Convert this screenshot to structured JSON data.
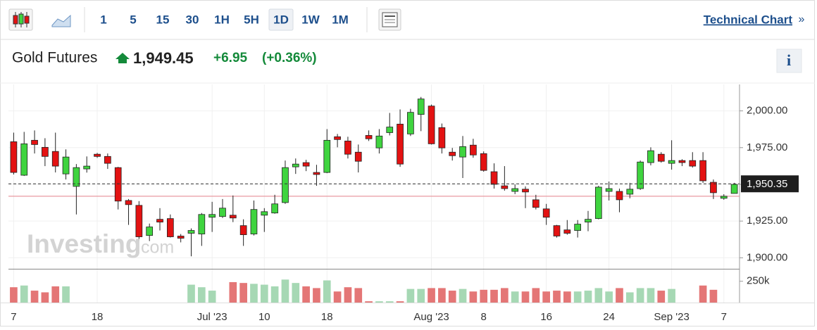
{
  "toolbar": {
    "intervals": [
      "1",
      "5",
      "15",
      "30",
      "1H",
      "5H",
      "1D",
      "1W",
      "1M"
    ],
    "active": "1D",
    "link": "Technical Chart",
    "link_arrow": "»"
  },
  "header": {
    "name": "Gold Futures",
    "price": "1,949.45",
    "change": "+6.95",
    "change_pct": "(+0.36%)",
    "info": "i"
  },
  "watermark": {
    "brand": "Investing",
    "suffix": ".com"
  },
  "chart_data": {
    "type": "candlestick",
    "categories": [
      "7",
      null,
      null,
      null,
      null,
      null,
      null,
      null,
      "18",
      null,
      null,
      null,
      null,
      null,
      null,
      null,
      null,
      null,
      null,
      "Jul '23",
      null,
      null,
      null,
      null,
      "10",
      null,
      null,
      null,
      null,
      null,
      "18",
      null,
      null,
      null,
      null,
      null,
      null,
      null,
      null,
      null,
      "Aug '23",
      null,
      null,
      null,
      null,
      "8",
      null,
      null,
      null,
      null,
      null,
      "16",
      null,
      null,
      null,
      null,
      null,
      "24",
      null,
      null,
      null,
      null,
      null,
      "Sep '23",
      null,
      null,
      null,
      null,
      "7",
      null
    ],
    "open": [
      1979.0,
      1956.2,
      1980.0,
      1975.2,
      1972.4,
      1957.1,
      1948.6,
      1960.5,
      1970.5,
      1969.0,
      1961.4,
      1939.0,
      1935.7,
      1915.2,
      1926.2,
      1926.7,
      1914.8,
      1916.7,
      1916.2,
      1927.6,
      1928.1,
      1929.0,
      1921.9,
      1916.2,
      1929.0,
      1930.5,
      1937.6,
      1961.9,
      1964.8,
      1958.1,
      1958.1,
      1982.4,
      1979.5,
      1971.9,
      1983.3,
      1974.8,
      1985.2,
      1991.0,
      1984.3,
      1997.6,
      2003.3,
      1988.6,
      1971.9,
      1968.6,
      1976.7,
      1970.9,
      1958.6,
      1949.0,
      1945.2,
      1946.7,
      1939.5,
      1933.3,
      1921.9,
      1919.0,
      1918.6,
      1924.3,
      1926.7,
      1945.2,
      1945.2,
      1943.3,
      1947.1,
      1964.8,
      1970.5,
      1964.3,
      1966.2,
      1966.2,
      1966.2,
      1951.4,
      1940.5,
      1943.8
    ],
    "high": [
      1985.2,
      1985.7,
      1986.7,
      1981.4,
      1985.2,
      1973.8,
      1963.8,
      1969.0,
      1971.4,
      1971.0,
      1961.9,
      1940.0,
      1938.6,
      1923.3,
      1933.8,
      1929.5,
      1916.2,
      1920.0,
      1930.5,
      1938.1,
      1940.0,
      1942.4,
      1926.2,
      1939.0,
      1933.8,
      1942.9,
      1966.2,
      1967.6,
      1966.7,
      1963.3,
      1987.6,
      1984.3,
      1982.4,
      1977.1,
      1986.7,
      1987.6,
      1998.6,
      2001.0,
      2001.4,
      2009.5,
      2004.3,
      1991.4,
      1974.8,
      1982.9,
      1981.0,
      1972.4,
      1964.3,
      1962.4,
      1950.0,
      1948.6,
      1942.9,
      1936.7,
      1922.4,
      1925.7,
      1925.7,
      1931.9,
      1949.0,
      1951.9,
      1947.1,
      1951.0,
      1966.2,
      1975.2,
      1971.9,
      1980.0,
      1967.1,
      1971.9,
      1971.9,
      1953.3,
      1943.3,
      1951.0
    ],
    "low": [
      1956.7,
      1955.7,
      1971.0,
      1962.4,
      1958.1,
      1953.3,
      1929.5,
      1958.0,
      1968.0,
      1960.5,
      1932.9,
      1922.4,
      1911.4,
      1911.4,
      1918.6,
      1913.8,
      1910.5,
      1901.0,
      1908.1,
      1917.6,
      1927.1,
      1924.3,
      1908.1,
      1915.2,
      1917.6,
      1930.0,
      1936.7,
      1957.1,
      1959.0,
      1949.0,
      1957.6,
      1975.2,
      1967.6,
      1958.1,
      1979.5,
      1971.0,
      1983.3,
      1961.9,
      1982.9,
      1986.2,
      1977.1,
      1971.0,
      1966.2,
      1954.3,
      1968.1,
      1958.6,
      1947.1,
      1945.7,
      1943.3,
      1933.8,
      1932.9,
      1922.4,
      1913.8,
      1915.7,
      1913.8,
      1918.1,
      1926.2,
      1939.0,
      1931.0,
      1940.5,
      1946.2,
      1962.9,
      1964.8,
      1960.0,
      1962.4,
      1961.4,
      1951.0,
      1940.0,
      1939.5,
      1943.8
    ],
    "close": [
      1958.1,
      1977.6,
      1977.1,
      1969.0,
      1962.4,
      1968.6,
      1961.4,
      1962.4,
      1969.0,
      1964.3,
      1938.6,
      1936.2,
      1914.3,
      1921.0,
      1924.3,
      1914.3,
      1913.3,
      1918.6,
      1929.5,
      1929.5,
      1933.8,
      1927.1,
      1915.7,
      1932.9,
      1931.4,
      1936.7,
      1961.4,
      1963.8,
      1962.4,
      1956.7,
      1980.0,
      1980.5,
      1970.5,
      1965.7,
      1981.0,
      1982.9,
      1989.0,
      1963.8,
      1999.0,
      2008.1,
      1977.6,
      1974.8,
      1969.5,
      1975.7,
      1970.0,
      1959.5,
      1950.0,
      1947.1,
      1947.1,
      1944.8,
      1934.3,
      1927.6,
      1914.8,
      1916.7,
      1922.9,
      1926.2,
      1948.1,
      1947.1,
      1939.5,
      1946.7,
      1965.2,
      1972.9,
      1965.7,
      1966.2,
      1964.8,
      1962.4,
      1952.4,
      1944.3,
      1941.9,
      1950.0
    ],
    "up_color": "#3fd43f",
    "down_color": "#e31212",
    "ylim": [
      1893,
      2018
    ],
    "yticks": [
      {
        "value": 1900,
        "label": "1,900.00"
      },
      {
        "value": 1925,
        "label": "1,925.00"
      },
      {
        "value": 1950,
        "label": "1,950.00"
      },
      {
        "value": 1975,
        "label": "1,975.00"
      },
      {
        "value": 2000,
        "label": "2,000.00"
      }
    ],
    "last_price": {
      "value": 1950.35,
      "label": "1,950.35"
    },
    "previous_close": 1941.9,
    "grid": true,
    "volume": {
      "values": [
        180000,
        200000,
        140000,
        120000,
        190000,
        190000,
        null,
        null,
        null,
        null,
        null,
        null,
        null,
        null,
        null,
        null,
        null,
        210000,
        180000,
        140000,
        null,
        240000,
        230000,
        220000,
        210000,
        190000,
        270000,
        230000,
        190000,
        170000,
        260000,
        130000,
        180000,
        170000,
        15000,
        15000,
        15000,
        15000,
        160000,
        160000,
        170000,
        170000,
        140000,
        160000,
        130000,
        150000,
        150000,
        170000,
        130000,
        130000,
        170000,
        130000,
        140000,
        130000,
        130000,
        140000,
        170000,
        130000,
        170000,
        120000,
        170000,
        170000,
        140000,
        160000,
        null,
        null,
        200000,
        150000,
        null,
        null
      ],
      "up_color": "#a6d8b4",
      "down_color": "#e47676",
      "ylim": [
        0,
        380000
      ],
      "yticks": [
        {
          "value": 250000,
          "label": "250k"
        }
      ]
    }
  }
}
